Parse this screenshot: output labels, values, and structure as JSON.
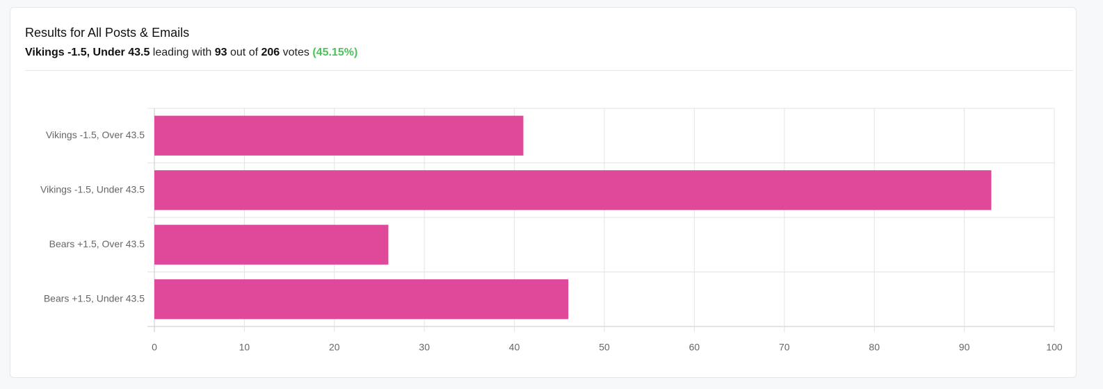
{
  "header": {
    "title": "Results for All Posts & Emails",
    "summary": {
      "leader": "Vikings -1.5, Under 43.5",
      "text_before_votes": "leading with",
      "votes": 93,
      "text_between": "out of",
      "total": 206,
      "text_after": "votes",
      "percent": "(45.15%)"
    }
  },
  "chart_data": {
    "type": "bar",
    "orientation": "horizontal",
    "categories": [
      "Vikings -1.5, Over 43.5",
      "Vikings -1.5, Under 43.5",
      "Bears +1.5, Over 43.5",
      "Bears +1.5, Under 43.5"
    ],
    "values": [
      41,
      93,
      26,
      46
    ],
    "color": "#e0489a",
    "xlim": [
      0,
      100
    ],
    "xticks": [
      0,
      10,
      20,
      30,
      40,
      50,
      60,
      70,
      80,
      90,
      100
    ],
    "grid": true
  }
}
